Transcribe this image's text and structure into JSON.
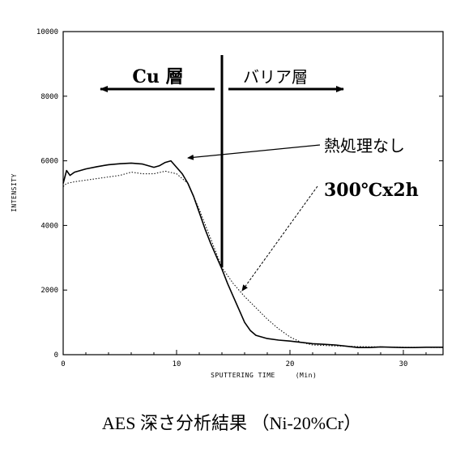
{
  "chart_data": {
    "type": "line",
    "title": "",
    "xlabel": "SPUTTERING TIME",
    "xunit": "(Min)",
    "ylabel": "INTENSITY",
    "xlim": [
      0,
      33.5
    ],
    "ylim": [
      0,
      10000
    ],
    "xticks": [
      0,
      10,
      20,
      30
    ],
    "yticks": [
      0,
      2000,
      4000,
      6000,
      8000,
      10000
    ],
    "grid": false,
    "series": [
      {
        "name": "熱処理なし",
        "style": "solid",
        "x": [
          0,
          0.3,
          0.6,
          1,
          1.5,
          2,
          3,
          4,
          5,
          6,
          7,
          8,
          8.5,
          9,
          9.5,
          10,
          10.5,
          11,
          11.5,
          12,
          12.5,
          13,
          13.5,
          14,
          14.5,
          15,
          15.5,
          16,
          16.5,
          17,
          18,
          19,
          20,
          21,
          22,
          23,
          24,
          25,
          26,
          27,
          28,
          29,
          30,
          31,
          32,
          33.5
        ],
        "y": [
          5300,
          5700,
          5550,
          5650,
          5700,
          5750,
          5820,
          5880,
          5910,
          5930,
          5900,
          5800,
          5850,
          5950,
          6000,
          5800,
          5600,
          5300,
          4900,
          4400,
          3900,
          3450,
          3050,
          2650,
          2200,
          1800,
          1400,
          1000,
          750,
          600,
          500,
          450,
          420,
          380,
          340,
          320,
          300,
          260,
          220,
          220,
          240,
          230,
          220,
          220,
          230,
          230
        ]
      },
      {
        "name": "300℃x2h",
        "style": "dotted",
        "x": [
          0,
          0.3,
          1,
          2,
          3,
          4,
          5,
          6,
          7,
          8,
          9,
          10,
          11,
          12,
          13,
          14,
          15,
          16,
          17,
          18,
          19,
          20,
          21,
          22,
          24,
          26,
          28,
          30,
          33.5
        ],
        "y": [
          5200,
          5300,
          5350,
          5400,
          5450,
          5500,
          5550,
          5650,
          5600,
          5600,
          5680,
          5600,
          5300,
          4500,
          3600,
          2700,
          2200,
          1800,
          1450,
          1100,
          800,
          550,
          380,
          300,
          270,
          250,
          240,
          230,
          220
        ]
      }
    ],
    "annotations": {
      "cu_region": "Cu 層",
      "barrier_region": "バリア層",
      "label_no_heat": "熱処理なし",
      "label_heat": "300℃x2h",
      "boundary_x": 14
    }
  },
  "caption": "AES 深さ分析結果 （Ni-20%Cr）"
}
